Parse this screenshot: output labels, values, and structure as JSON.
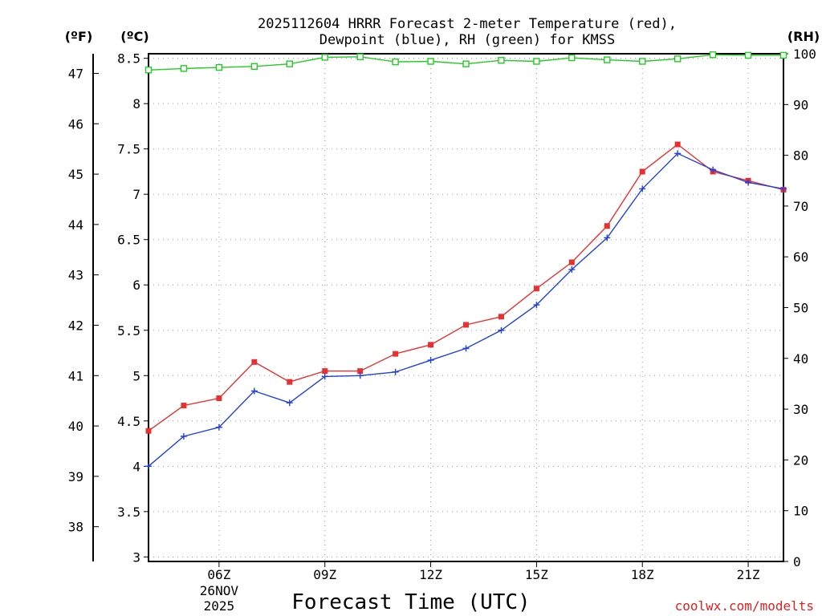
{
  "chart_data": {
    "type": "line",
    "title_lines": [
      "2025112604 HRRR Forecast 2-meter Temperature (red),",
      "Dewpoint (blue), RH (green) for KMSS"
    ],
    "xlabel": "Forecast Time (UTC)",
    "credit": "coolwx.com/modelts",
    "units": {
      "fahrenheit": "(ºF)",
      "celsius": "(ºC)",
      "rh": "(RH)"
    },
    "x_start_hour_utc": 4,
    "x_range_hours": [
      4,
      22
    ],
    "x_ticks": [
      {
        "hour": 6,
        "label": "06Z",
        "date_line1": "26NOV",
        "date_line2": "2025"
      },
      {
        "hour": 9,
        "label": "09Z"
      },
      {
        "hour": 12,
        "label": "12Z"
      },
      {
        "hour": 15,
        "label": "15Z"
      },
      {
        "hour": 18,
        "label": "18Z"
      },
      {
        "hour": 21,
        "label": "21Z"
      }
    ],
    "celsius_axis": {
      "range": [
        2.95,
        8.55
      ],
      "ticks": [
        "3",
        "3.5",
        "4",
        "4.5",
        "5",
        "5.5",
        "6",
        "6.5",
        "7",
        "7.5",
        "8",
        "8.5"
      ]
    },
    "fahrenheit_axis": {
      "ticks": [
        "38",
        "39",
        "40",
        "41",
        "42",
        "43",
        "44",
        "45",
        "46",
        "47"
      ]
    },
    "rh_axis": {
      "range": [
        0,
        100
      ],
      "ticks": [
        "0",
        "10",
        "20",
        "30",
        "40",
        "50",
        "60",
        "70",
        "80",
        "90",
        "100"
      ]
    },
    "series": [
      {
        "name": "2-meter Temperature",
        "unit": "C",
        "color": "#e83030",
        "marker": "filled-square",
        "values": [
          4.39,
          4.67,
          4.75,
          5.15,
          4.93,
          5.05,
          5.05,
          5.24,
          5.34,
          5.56,
          5.65,
          5.96,
          6.25,
          6.65,
          7.25,
          7.55,
          7.25,
          7.15,
          7.05
        ]
      },
      {
        "name": "Dewpoint",
        "unit": "C",
        "color": "#2040e0",
        "marker": "plus",
        "values": [
          4.0,
          4.33,
          4.43,
          4.83,
          4.7,
          4.99,
          5.0,
          5.04,
          5.17,
          5.3,
          5.5,
          5.78,
          6.17,
          6.52,
          7.06,
          7.45,
          7.27,
          7.13,
          7.06
        ]
      },
      {
        "name": "RH",
        "unit": "%",
        "color": "#22cc22",
        "marker": "open-square",
        "values": [
          96.8,
          97.1,
          97.3,
          97.5,
          98.0,
          99.3,
          99.4,
          98.4,
          98.5,
          98.0,
          98.7,
          98.5,
          99.2,
          98.8,
          98.5,
          99.0,
          99.8,
          99.7,
          99.7
        ]
      }
    ]
  }
}
